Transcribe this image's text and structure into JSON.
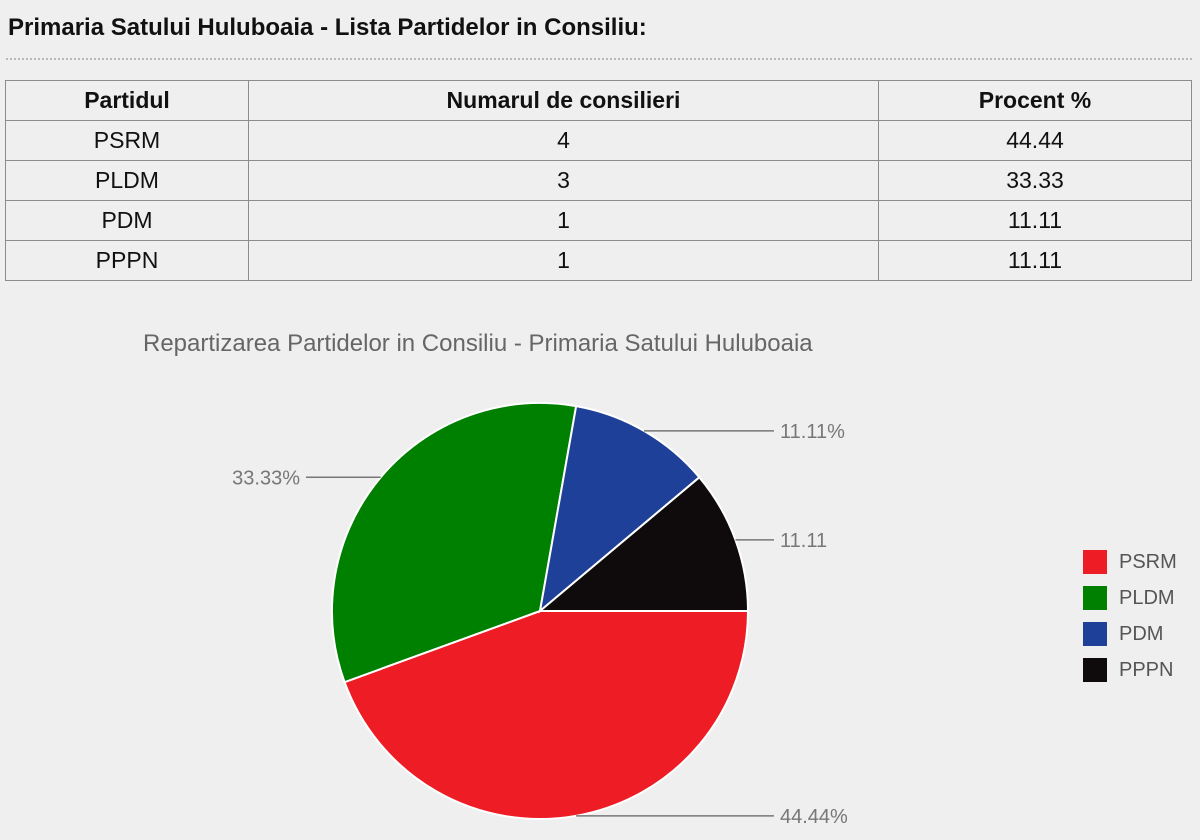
{
  "page": {
    "title": "Primaria Satului Huluboaia - Lista Partidelor in Consiliu:"
  },
  "table": {
    "headers": [
      "Partidul",
      "Numarul de consilieri",
      "Procent %"
    ],
    "rows": [
      [
        "PSRM",
        "4",
        "44.44"
      ],
      [
        "PLDM",
        "3",
        "33.33"
      ],
      [
        "PDM",
        "1",
        "11.11"
      ],
      [
        "PPPN",
        "1",
        "11.11"
      ]
    ]
  },
  "chart_data": {
    "type": "pie",
    "title": "Repartizarea Partidelor in Consiliu - Primaria Satului Huluboaia",
    "legend_position": "right",
    "slices": [
      {
        "name": "PSRM",
        "value": 44.44,
        "label": "44.44%",
        "color": "#ee1c24"
      },
      {
        "name": "PLDM",
        "value": 33.33,
        "label": "33.33%",
        "color": "#008000"
      },
      {
        "name": "PDM",
        "value": 11.11,
        "label": "11.11%",
        "color": "#1f4098"
      },
      {
        "name": "PPPN",
        "value": 11.11,
        "label": "11.11",
        "color": "#0f0b0c"
      }
    ]
  }
}
